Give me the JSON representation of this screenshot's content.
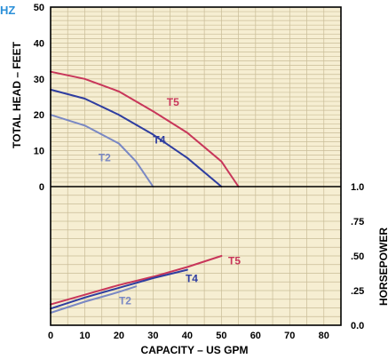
{
  "corner_label": "HZ",
  "chart_data": {
    "type": "line",
    "colors": {
      "panel": "#f6eed2",
      "grid": "#c9bc97",
      "frame": "#000000",
      "t5": "#c8365a",
      "t4": "#2e3da0",
      "t2": "#7a88c4",
      "corner_label": "#2a8fd8"
    },
    "xlabel": "CAPACITY – US GPM",
    "xlim": [
      0,
      85
    ],
    "x_ticks": [
      {
        "value": 0,
        "label": "0"
      },
      {
        "value": 10,
        "label": "10"
      },
      {
        "value": 20,
        "label": "20"
      },
      {
        "value": 30,
        "label": "30"
      },
      {
        "value": 40,
        "label": "40"
      },
      {
        "value": 50,
        "label": "50"
      },
      {
        "value": 60,
        "label": "60"
      },
      {
        "value": 70,
        "label": "70"
      },
      {
        "value": 80,
        "label": "80"
      }
    ],
    "head": {
      "ylabel": "TOTAL HEAD – FEET",
      "ylim": [
        0,
        50
      ],
      "y_ticks": [
        {
          "value": 0,
          "label": "0"
        },
        {
          "value": 10,
          "label": "10"
        },
        {
          "value": 20,
          "label": "20"
        },
        {
          "value": 30,
          "label": "30"
        },
        {
          "value": 40,
          "label": "40"
        },
        {
          "value": 50,
          "label": "50"
        }
      ],
      "series": [
        {
          "name": "T5",
          "color_key": "t5",
          "label_at": [
            34,
            22.5
          ],
          "x": [
            0,
            10,
            20,
            30,
            40,
            50,
            55
          ],
          "y": [
            32,
            30,
            26.5,
            21,
            15,
            7,
            0
          ]
        },
        {
          "name": "T4",
          "color_key": "t4",
          "label_at": [
            30,
            12
          ],
          "x": [
            0,
            10,
            20,
            30,
            40,
            50
          ],
          "y": [
            27,
            24.5,
            20,
            14.5,
            8,
            0
          ]
        },
        {
          "name": "T2",
          "color_key": "t2",
          "label_at": [
            14,
            7
          ],
          "x": [
            0,
            10,
            20,
            25,
            30
          ],
          "y": [
            20,
            17,
            12,
            7,
            0
          ]
        }
      ]
    },
    "power": {
      "ylabel": "HORSEPOWER",
      "ylim": [
        0,
        1.0
      ],
      "y_ticks": [
        {
          "value": 0,
          "label": "0.0"
        },
        {
          "value": 0.25,
          "label": ".25"
        },
        {
          "value": 0.5,
          "label": ".50"
        },
        {
          "value": 0.75,
          "label": ".75"
        },
        {
          "value": 1.0,
          "label": "1.0"
        }
      ],
      "series": [
        {
          "name": "T5",
          "color_key": "t5",
          "label_at": [
            52,
            0.44
          ],
          "x": [
            0,
            10,
            20,
            30,
            40,
            50
          ],
          "y": [
            0.15,
            0.22,
            0.29,
            0.35,
            0.42,
            0.5
          ]
        },
        {
          "name": "T4",
          "color_key": "t4",
          "label_at": [
            39.5,
            0.31
          ],
          "x": [
            0,
            10,
            20,
            30,
            40
          ],
          "y": [
            0.12,
            0.2,
            0.27,
            0.34,
            0.4
          ]
        },
        {
          "name": "T2",
          "color_key": "t2",
          "label_at": [
            20,
            0.15
          ],
          "x": [
            0,
            10,
            20,
            25
          ],
          "y": [
            0.09,
            0.17,
            0.24,
            0.28
          ]
        }
      ]
    }
  }
}
